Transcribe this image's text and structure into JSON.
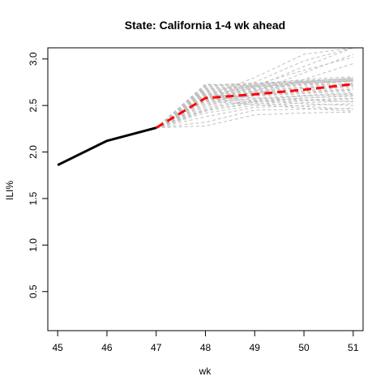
{
  "chart_data": {
    "type": "line",
    "title": "State: California 1-4 wk ahead",
    "xlabel": "wk",
    "ylabel": "ILI%",
    "xlim": [
      44.8,
      51.2
    ],
    "ylim": [
      0.08,
      3.12
    ],
    "x_ticks": [
      45,
      46,
      47,
      48,
      49,
      50,
      51
    ],
    "y_ticks": [
      0.5,
      1.0,
      1.5,
      2.0,
      2.5,
      3.0
    ],
    "grid": false,
    "legend": "none",
    "series": [
      {
        "role": "observed",
        "color": "#000000",
        "style": "solid",
        "x": [
          45,
          46,
          47
        ],
        "y": [
          1.86,
          2.12,
          2.26
        ]
      },
      {
        "role": "forecast-mean",
        "color": "#ff0000",
        "style": "dashed",
        "x": [
          47,
          48,
          49,
          50,
          51
        ],
        "y": [
          2.26,
          2.58,
          2.62,
          2.67,
          2.73
        ]
      }
    ],
    "simulations": {
      "color": "#c0c0c0",
      "style": "dashed",
      "x": [
        47,
        48,
        49,
        50,
        51
      ],
      "traces": [
        [
          2.26,
          2.28,
          2.4,
          2.42,
          2.43
        ],
        [
          2.26,
          2.32,
          2.45,
          2.46,
          2.47
        ],
        [
          2.26,
          2.38,
          2.48,
          2.5,
          2.52
        ],
        [
          2.26,
          2.42,
          2.5,
          2.53,
          2.55
        ],
        [
          2.26,
          2.45,
          2.52,
          2.55,
          2.57
        ],
        [
          2.26,
          2.48,
          2.54,
          2.56,
          2.58
        ],
        [
          2.26,
          2.5,
          2.55,
          2.58,
          2.6
        ],
        [
          2.26,
          2.52,
          2.57,
          2.6,
          2.62
        ],
        [
          2.26,
          2.54,
          2.58,
          2.61,
          2.64
        ],
        [
          2.26,
          2.55,
          2.6,
          2.63,
          2.66
        ],
        [
          2.26,
          2.56,
          2.61,
          2.64,
          2.67
        ],
        [
          2.26,
          2.57,
          2.62,
          2.65,
          2.68
        ],
        [
          2.26,
          2.58,
          2.63,
          2.66,
          2.7
        ],
        [
          2.26,
          2.59,
          2.64,
          2.68,
          2.71
        ],
        [
          2.26,
          2.6,
          2.65,
          2.69,
          2.72
        ],
        [
          2.26,
          2.61,
          2.66,
          2.7,
          2.74
        ],
        [
          2.26,
          2.62,
          2.67,
          2.72,
          2.76
        ],
        [
          2.26,
          2.63,
          2.68,
          2.73,
          2.77
        ],
        [
          2.26,
          2.64,
          2.69,
          2.74,
          2.78
        ],
        [
          2.26,
          2.65,
          2.7,
          2.75,
          2.8
        ],
        [
          2.26,
          2.66,
          2.71,
          2.76,
          2.79
        ],
        [
          2.26,
          2.67,
          2.72,
          2.78,
          2.81
        ],
        [
          2.26,
          2.68,
          2.7,
          2.74,
          2.76
        ],
        [
          2.26,
          2.69,
          2.72,
          2.75,
          2.77
        ],
        [
          2.26,
          2.7,
          2.74,
          2.77,
          2.79
        ],
        [
          2.26,
          2.71,
          2.73,
          2.76,
          2.78
        ],
        [
          2.26,
          2.72,
          2.74,
          2.75,
          2.76
        ],
        [
          2.26,
          2.73,
          2.71,
          2.72,
          2.73
        ],
        [
          2.26,
          2.62,
          2.58,
          2.56,
          2.54
        ],
        [
          2.26,
          2.6,
          2.55,
          2.52,
          2.5
        ],
        [
          2.26,
          2.58,
          2.53,
          2.49,
          2.46
        ],
        [
          2.26,
          2.55,
          2.51,
          2.47,
          2.44
        ],
        [
          2.26,
          2.5,
          2.62,
          2.78,
          2.95
        ],
        [
          2.26,
          2.52,
          2.65,
          2.85,
          3.05
        ],
        [
          2.26,
          2.55,
          2.7,
          2.92,
          3.12
        ],
        [
          2.26,
          2.57,
          2.75,
          2.98,
          3.12
        ],
        [
          2.26,
          2.6,
          2.8,
          3.05,
          3.12
        ],
        [
          2.26,
          2.58,
          2.72,
          2.88,
          3.02
        ],
        [
          2.26,
          2.46,
          2.56,
          2.6,
          2.63
        ],
        [
          2.26,
          2.44,
          2.54,
          2.58,
          2.61
        ]
      ]
    }
  }
}
